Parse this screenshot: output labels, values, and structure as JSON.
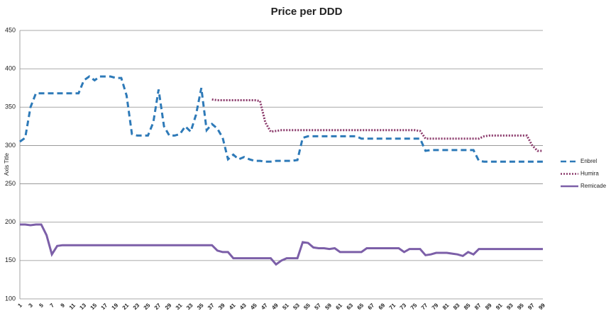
{
  "chart_data": {
    "type": "line",
    "title": "Price per DDD",
    "y_label": "Axis Title",
    "categories": [
      1,
      null,
      3,
      null,
      5,
      null,
      7,
      null,
      9,
      null,
      11,
      null,
      13,
      null,
      15,
      null,
      17,
      null,
      19,
      null,
      21,
      null,
      23,
      null,
      25,
      null,
      27,
      null,
      29,
      null,
      31,
      null,
      33,
      null,
      35,
      null,
      37,
      null,
      39,
      null,
      41,
      null,
      43,
      null,
      45,
      null,
      47,
      null,
      49,
      null,
      51,
      null,
      53,
      null,
      55,
      null,
      57,
      null,
      59,
      null,
      61,
      null,
      63,
      null,
      65,
      null,
      67,
      null,
      69,
      null,
      71,
      null,
      73,
      null,
      75,
      null,
      77,
      null,
      79,
      null,
      81,
      null,
      83,
      null,
      85,
      null,
      87,
      null,
      89,
      null,
      91,
      null,
      93,
      null,
      95,
      null,
      97,
      null,
      99
    ],
    "series": [
      {
        "name": "Enbrel",
        "color": "#2e7ab8",
        "dash": "dashed",
        "values": [
          305,
          310,
          350,
          368,
          368,
          368,
          368,
          368,
          368,
          368,
          368,
          368,
          385,
          390,
          385,
          390,
          390,
          390,
          388,
          388,
          365,
          315,
          313,
          313,
          313,
          330,
          373,
          325,
          313,
          313,
          315,
          325,
          318,
          340,
          375,
          320,
          328,
          322,
          310,
          282,
          288,
          282,
          285,
          282,
          280,
          280,
          279,
          279,
          280,
          280,
          280,
          280,
          281,
          310,
          312,
          312,
          312,
          312,
          312,
          312,
          312,
          312,
          312,
          312,
          309,
          309,
          309,
          309,
          309,
          309,
          309,
          309,
          309,
          309,
          309,
          309,
          293,
          294,
          294,
          294,
          294,
          294,
          294,
          294,
          294,
          294,
          280,
          279,
          279,
          279,
          279,
          279,
          279,
          279,
          279,
          279,
          279,
          279,
          279
        ]
      },
      {
        "name": "Humira",
        "color": "#8b3a6b",
        "dash": "dotted",
        "values": [
          null,
          null,
          null,
          null,
          null,
          null,
          null,
          null,
          null,
          null,
          null,
          null,
          null,
          null,
          null,
          null,
          null,
          null,
          null,
          null,
          null,
          null,
          null,
          null,
          null,
          null,
          null,
          null,
          null,
          null,
          null,
          null,
          null,
          null,
          null,
          null,
          360,
          359,
          359,
          359,
          359,
          359,
          359,
          359,
          359,
          358,
          330,
          318,
          319,
          320,
          320,
          320,
          320,
          320,
          320,
          320,
          320,
          320,
          320,
          320,
          320,
          320,
          320,
          320,
          320,
          320,
          320,
          320,
          320,
          320,
          320,
          320,
          320,
          320,
          320,
          319,
          309,
          309,
          309,
          309,
          309,
          309,
          309,
          309,
          309,
          309,
          309,
          312,
          313,
          313,
          313,
          313,
          313,
          313,
          313,
          313,
          300,
          293,
          293
        ]
      },
      {
        "name": "Remicade",
        "color": "#7c5fa8",
        "dash": "solid",
        "values": [
          197,
          197,
          196,
          197,
          197,
          183,
          158,
          169,
          170,
          170,
          170,
          170,
          170,
          170,
          170,
          170,
          170,
          170,
          170,
          170,
          170,
          170,
          170,
          170,
          170,
          170,
          170,
          170,
          170,
          170,
          170,
          170,
          170,
          170,
          170,
          170,
          170,
          163,
          161,
          161,
          153,
          153,
          153,
          153,
          153,
          153,
          153,
          153,
          145,
          150,
          153,
          153,
          153,
          174,
          173,
          167,
          166,
          166,
          165,
          166,
          161,
          161,
          161,
          161,
          161,
          166,
          166,
          166,
          166,
          166,
          166,
          166,
          161,
          165,
          165,
          165,
          157,
          158,
          160,
          160,
          160,
          159,
          158,
          156,
          161,
          158,
          165,
          165,
          165,
          165,
          165,
          165,
          165,
          165,
          165,
          165,
          165,
          165,
          165
        ]
      }
    ],
    "ylim": [
      100,
      450
    ],
    "yticks": [
      100,
      150,
      200,
      250,
      300,
      350,
      400,
      450
    ],
    "grid": true
  }
}
